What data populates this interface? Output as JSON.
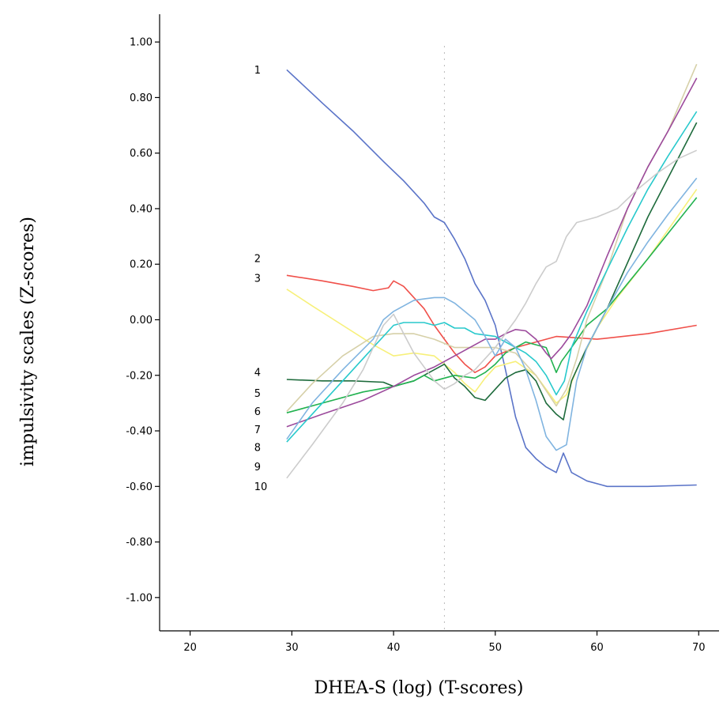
{
  "chart_data": {
    "type": "line",
    "title": "",
    "xlabel": "DHEA-S (log) (T-scores)",
    "ylabel": "impulsivity scales (Z-scores)",
    "xlim": [
      17,
      72
    ],
    "ylim": [
      -1.12,
      1.1
    ],
    "xticks": [
      20,
      30,
      40,
      50,
      60,
      70
    ],
    "xtick_labels": [
      "20",
      "30",
      "40",
      "50",
      "60",
      "70"
    ],
    "yticks": [
      1.0,
      0.8,
      0.6,
      0.4,
      0.2,
      0.0,
      -0.2,
      -0.4,
      -0.6,
      -0.8,
      -1.0
    ],
    "ytick_labels": [
      "1.00",
      "0.80",
      "0.60",
      "0.40",
      "0.20",
      "0.00",
      "-0.20",
      "-0.40",
      "-0.60",
      "-0.80",
      "-1.00"
    ],
    "grid": false,
    "reference_line_x": 45,
    "label_x": 26.3,
    "series": [
      {
        "name": "1",
        "label_y": 0.9,
        "color": "#5b74c8",
        "points": [
          [
            29.5,
            0.9
          ],
          [
            33,
            0.78
          ],
          [
            36,
            0.68
          ],
          [
            39,
            0.57
          ],
          [
            41,
            0.5
          ],
          [
            43,
            0.42
          ],
          [
            44,
            0.37
          ],
          [
            45,
            0.35
          ],
          [
            46,
            0.29
          ],
          [
            47,
            0.22
          ],
          [
            48,
            0.13
          ],
          [
            49,
            0.07
          ],
          [
            50,
            -0.02
          ],
          [
            51,
            -0.18
          ],
          [
            52,
            -0.35
          ],
          [
            53,
            -0.46
          ],
          [
            54,
            -0.5
          ],
          [
            55,
            -0.53
          ],
          [
            56,
            -0.55
          ],
          [
            56.7,
            -0.48
          ],
          [
            57.5,
            -0.55
          ],
          [
            59,
            -0.58
          ],
          [
            61,
            -0.6
          ],
          [
            65,
            -0.6
          ],
          [
            69.8,
            -0.595
          ]
        ]
      },
      {
        "name": "2",
        "label_y": 0.22,
        "color": "#f0504a",
        "points": [
          [
            29.5,
            0.16
          ],
          [
            33,
            0.14
          ],
          [
            36,
            0.12
          ],
          [
            38,
            0.105
          ],
          [
            39.5,
            0.115
          ],
          [
            40,
            0.14
          ],
          [
            41,
            0.12
          ],
          [
            42,
            0.08
          ],
          [
            43,
            0.04
          ],
          [
            44,
            -0.02
          ],
          [
            45,
            -0.07
          ],
          [
            46,
            -0.12
          ],
          [
            47,
            -0.16
          ],
          [
            48,
            -0.19
          ],
          [
            49,
            -0.17
          ],
          [
            50,
            -0.13
          ],
          [
            52,
            -0.1
          ],
          [
            54,
            -0.08
          ],
          [
            56,
            -0.06
          ],
          [
            58,
            -0.065
          ],
          [
            60,
            -0.07
          ],
          [
            65,
            -0.05
          ],
          [
            69.8,
            -0.02
          ]
        ]
      },
      {
        "name": "3",
        "label_y": 0.15,
        "color": "#f7f07a",
        "points": [
          [
            29.5,
            0.11
          ],
          [
            32,
            0.05
          ],
          [
            35,
            -0.02
          ],
          [
            38,
            -0.09
          ],
          [
            40,
            -0.13
          ],
          [
            42,
            -0.12
          ],
          [
            44,
            -0.13
          ],
          [
            46,
            -0.19
          ],
          [
            47,
            -0.23
          ],
          [
            48,
            -0.26
          ],
          [
            49,
            -0.21
          ],
          [
            50,
            -0.17
          ],
          [
            52,
            -0.15
          ],
          [
            54,
            -0.2
          ],
          [
            56,
            -0.3
          ],
          [
            57,
            -0.27
          ],
          [
            58,
            -0.18
          ],
          [
            60,
            -0.03
          ],
          [
            62,
            0.08
          ],
          [
            65,
            0.22
          ],
          [
            69.8,
            0.47
          ]
        ]
      },
      {
        "name": "4",
        "label_y": -0.19,
        "color": "#1e6b3c",
        "points": [
          [
            29.5,
            -0.215
          ],
          [
            33,
            -0.22
          ],
          [
            36,
            -0.22
          ],
          [
            39,
            -0.225
          ],
          [
            40,
            -0.24
          ],
          [
            42,
            -0.22
          ],
          [
            44,
            -0.18
          ],
          [
            45,
            -0.16
          ],
          [
            46,
            -0.21
          ],
          [
            47,
            -0.24
          ],
          [
            48,
            -0.28
          ],
          [
            49,
            -0.29
          ],
          [
            50,
            -0.25
          ],
          [
            51,
            -0.21
          ],
          [
            52,
            -0.19
          ],
          [
            53,
            -0.18
          ],
          [
            54,
            -0.22
          ],
          [
            55,
            -0.3
          ],
          [
            56,
            -0.34
          ],
          [
            56.7,
            -0.36
          ],
          [
            57.5,
            -0.22
          ],
          [
            59,
            -0.1
          ],
          [
            61,
            0.04
          ],
          [
            65,
            0.37
          ],
          [
            69.8,
            0.71
          ]
        ]
      },
      {
        "name": "5",
        "label_y": -0.265,
        "color": "#22b250",
        "points": [
          [
            29.5,
            -0.335
          ],
          [
            33,
            -0.3
          ],
          [
            37,
            -0.26
          ],
          [
            40,
            -0.24
          ],
          [
            42,
            -0.22
          ],
          [
            43,
            -0.2
          ],
          [
            44,
            -0.22
          ],
          [
            45,
            -0.21
          ],
          [
            46,
            -0.2
          ],
          [
            48,
            -0.21
          ],
          [
            49,
            -0.19
          ],
          [
            50,
            -0.16
          ],
          [
            51,
            -0.12
          ],
          [
            52,
            -0.1
          ],
          [
            53,
            -0.08
          ],
          [
            55,
            -0.1
          ],
          [
            56,
            -0.19
          ],
          [
            56.5,
            -0.15
          ],
          [
            57.5,
            -0.1
          ],
          [
            59,
            -0.02
          ],
          [
            61,
            0.04
          ],
          [
            65,
            0.22
          ],
          [
            69.8,
            0.44
          ]
        ]
      },
      {
        "name": "6",
        "label_y": -0.33,
        "color": "#d6d0a8",
        "points": [
          [
            29.5,
            -0.33
          ],
          [
            32,
            -0.23
          ],
          [
            35,
            -0.13
          ],
          [
            38,
            -0.06
          ],
          [
            40,
            -0.05
          ],
          [
            42,
            -0.05
          ],
          [
            44,
            -0.07
          ],
          [
            46,
            -0.1
          ],
          [
            48,
            -0.1
          ],
          [
            50,
            -0.1
          ],
          [
            52,
            -0.12
          ],
          [
            54,
            -0.2
          ],
          [
            56,
            -0.31
          ],
          [
            57,
            -0.25
          ],
          [
            58,
            -0.14
          ],
          [
            59,
            0.0
          ],
          [
            61,
            0.18
          ],
          [
            63,
            0.4
          ],
          [
            65,
            0.55
          ],
          [
            67,
            0.68
          ],
          [
            69.8,
            0.92
          ]
        ]
      },
      {
        "name": "7",
        "label_y": -0.395,
        "color": "#9c4a9c",
        "points": [
          [
            29.5,
            -0.385
          ],
          [
            33,
            -0.34
          ],
          [
            37,
            -0.29
          ],
          [
            40,
            -0.24
          ],
          [
            42,
            -0.2
          ],
          [
            44,
            -0.17
          ],
          [
            46,
            -0.13
          ],
          [
            48,
            -0.09
          ],
          [
            49,
            -0.07
          ],
          [
            50,
            -0.07
          ],
          [
            51,
            -0.05
          ],
          [
            52,
            -0.035
          ],
          [
            53,
            -0.04
          ],
          [
            54,
            -0.07
          ],
          [
            55,
            -0.12
          ],
          [
            55.5,
            -0.14
          ],
          [
            56.5,
            -0.1
          ],
          [
            57.5,
            -0.05
          ],
          [
            59,
            0.05
          ],
          [
            61,
            0.23
          ],
          [
            63,
            0.4
          ],
          [
            65,
            0.55
          ],
          [
            67,
            0.68
          ],
          [
            69.8,
            0.87
          ]
        ]
      },
      {
        "name": "8",
        "label_y": -0.46,
        "color": "#28c9cc",
        "points": [
          [
            29.5,
            -0.44
          ],
          [
            32,
            -0.34
          ],
          [
            35,
            -0.22
          ],
          [
            38,
            -0.1
          ],
          [
            40,
            -0.02
          ],
          [
            41,
            -0.01
          ],
          [
            43,
            -0.01
          ],
          [
            44,
            -0.02
          ],
          [
            45,
            -0.01
          ],
          [
            46,
            -0.03
          ],
          [
            47,
            -0.03
          ],
          [
            48,
            -0.05
          ],
          [
            50,
            -0.06
          ],
          [
            51,
            -0.08
          ],
          [
            52,
            -0.1
          ],
          [
            53,
            -0.12
          ],
          [
            54,
            -0.15
          ],
          [
            55,
            -0.2
          ],
          [
            56,
            -0.27
          ],
          [
            56.8,
            -0.22
          ],
          [
            57.5,
            -0.1
          ],
          [
            59,
            0.03
          ],
          [
            61,
            0.18
          ],
          [
            63,
            0.33
          ],
          [
            65,
            0.47
          ],
          [
            67,
            0.59
          ],
          [
            69.8,
            0.75
          ]
        ]
      },
      {
        "name": "9",
        "label_y": -0.53,
        "color": "#80b4e0",
        "points": [
          [
            29.5,
            -0.43
          ],
          [
            32,
            -0.3
          ],
          [
            35,
            -0.18
          ],
          [
            38,
            -0.07
          ],
          [
            39,
            0.0
          ],
          [
            40,
            0.03
          ],
          [
            41,
            0.05
          ],
          [
            42,
            0.07
          ],
          [
            43,
            0.075
          ],
          [
            44,
            0.08
          ],
          [
            45,
            0.08
          ],
          [
            46,
            0.06
          ],
          [
            47,
            0.03
          ],
          [
            48,
            0.0
          ],
          [
            49,
            -0.06
          ],
          [
            50,
            -0.13
          ],
          [
            51,
            -0.07
          ],
          [
            52,
            -0.1
          ],
          [
            53,
            -0.18
          ],
          [
            54,
            -0.29
          ],
          [
            55,
            -0.42
          ],
          [
            56,
            -0.47
          ],
          [
            57,
            -0.45
          ],
          [
            58,
            -0.22
          ],
          [
            59,
            -0.1
          ],
          [
            61,
            0.04
          ],
          [
            63,
            0.17
          ],
          [
            65,
            0.28
          ],
          [
            67,
            0.38
          ],
          [
            69.8,
            0.51
          ]
        ]
      },
      {
        "name": "10",
        "label_y": -0.6,
        "color": "#cccccc",
        "points": [
          [
            29.5,
            -0.57
          ],
          [
            32,
            -0.45
          ],
          [
            35,
            -0.3
          ],
          [
            37,
            -0.18
          ],
          [
            38,
            -0.1
          ],
          [
            39,
            -0.02
          ],
          [
            40,
            0.02
          ],
          [
            41,
            -0.05
          ],
          [
            42,
            -0.12
          ],
          [
            43,
            -0.17
          ],
          [
            44,
            -0.22
          ],
          [
            45,
            -0.25
          ],
          [
            46,
            -0.23
          ],
          [
            47,
            -0.2
          ],
          [
            48,
            -0.18
          ],
          [
            50,
            -0.1
          ],
          [
            52,
            0.0
          ],
          [
            53,
            0.06
          ],
          [
            54,
            0.13
          ],
          [
            55,
            0.19
          ],
          [
            56,
            0.21
          ],
          [
            57,
            0.3
          ],
          [
            58,
            0.35
          ],
          [
            59,
            0.36
          ],
          [
            60,
            0.37
          ],
          [
            62,
            0.4
          ],
          [
            64,
            0.47
          ],
          [
            66,
            0.53
          ],
          [
            68,
            0.58
          ],
          [
            69.8,
            0.61
          ]
        ]
      }
    ]
  }
}
